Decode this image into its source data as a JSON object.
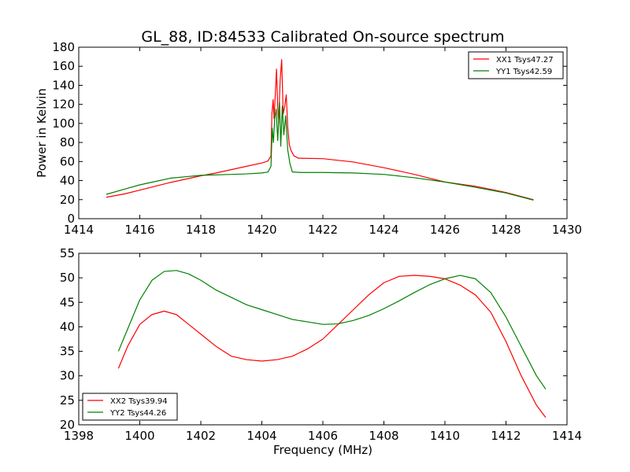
{
  "figure_title": "GL_88, ID:84533 Calibrated On-source spectrum",
  "colors": {
    "red": "#ff0000",
    "green": "#008000",
    "axes": "#000000",
    "background": "#ffffff"
  },
  "chart_data": [
    {
      "type": "line",
      "title": "GL_88, ID:84533 Calibrated On-source spectrum",
      "xlabel": "",
      "ylabel": "Power in Kelvin",
      "xlim": [
        1414,
        1430
      ],
      "ylim": [
        0,
        180
      ],
      "xticks": [
        "1414",
        "1416",
        "1418",
        "1420",
        "1422",
        "1424",
        "1426",
        "1428",
        "1430"
      ],
      "yticks": [
        "0",
        "20",
        "40",
        "60",
        "80",
        "100",
        "120",
        "140",
        "160",
        "180"
      ],
      "grid": false,
      "legend_position": "top-right",
      "series": [
        {
          "name": "XX1 Tsys47.27",
          "color": "#ff0000",
          "points": [
            [
              1414.9,
              22.5
            ],
            [
              1415.5,
              26
            ],
            [
              1416,
              30
            ],
            [
              1416.5,
              34
            ],
            [
              1417,
              38
            ],
            [
              1417.5,
              41.5
            ],
            [
              1418,
              45
            ],
            [
              1418.5,
              48
            ],
            [
              1419,
              51.5
            ],
            [
              1419.5,
              55
            ],
            [
              1420,
              58.5
            ],
            [
              1420.2,
              60.5
            ],
            [
              1420.3,
              66
            ],
            [
              1420.33,
              110
            ],
            [
              1420.37,
              125
            ],
            [
              1420.4,
              105
            ],
            [
              1420.44,
              130
            ],
            [
              1420.48,
              157
            ],
            [
              1420.52,
              118
            ],
            [
              1420.55,
              100
            ],
            [
              1420.6,
              145
            ],
            [
              1420.65,
              167
            ],
            [
              1420.7,
              110
            ],
            [
              1420.75,
              118
            ],
            [
              1420.8,
              130
            ],
            [
              1420.85,
              95
            ],
            [
              1420.9,
              78
            ],
            [
              1420.95,
              72
            ],
            [
              1421.05,
              66
            ],
            [
              1421.2,
              63.5
            ],
            [
              1422,
              63
            ],
            [
              1423,
              59.5
            ],
            [
              1424,
              53.5
            ],
            [
              1425,
              46.5
            ],
            [
              1425.5,
              42.5
            ],
            [
              1426,
              38.5
            ],
            [
              1427,
              34
            ],
            [
              1428,
              27.5
            ],
            [
              1428.9,
              20
            ]
          ]
        },
        {
          "name": "YY1 Tsys42.59",
          "color": "#008000",
          "points": [
            [
              1414.9,
              25.5
            ],
            [
              1415.5,
              31
            ],
            [
              1416,
              35.5
            ],
            [
              1416.5,
              39
            ],
            [
              1417,
              42.5
            ],
            [
              1417.5,
              44
            ],
            [
              1418,
              45.5
            ],
            [
              1419,
              46.5
            ],
            [
              1419.5,
              47
            ],
            [
              1420,
              48
            ],
            [
              1420.2,
              49
            ],
            [
              1420.3,
              55
            ],
            [
              1420.34,
              95
            ],
            [
              1420.38,
              80
            ],
            [
              1420.42,
              105
            ],
            [
              1420.47,
              115
            ],
            [
              1420.52,
              82
            ],
            [
              1420.58,
              122
            ],
            [
              1420.62,
              76
            ],
            [
              1420.67,
              118
            ],
            [
              1420.72,
              88
            ],
            [
              1420.78,
              108
            ],
            [
              1420.85,
              72
            ],
            [
              1420.92,
              58
            ],
            [
              1421,
              49
            ],
            [
              1421.3,
              48.5
            ],
            [
              1422,
              48.5
            ],
            [
              1423,
              48
            ],
            [
              1424,
              46.5
            ],
            [
              1425,
              43
            ],
            [
              1426,
              38.5
            ],
            [
              1427,
              33
            ],
            [
              1428,
              27
            ],
            [
              1428.9,
              19.5
            ]
          ]
        }
      ]
    },
    {
      "type": "line",
      "title": "",
      "xlabel": "Frequency (MHz)",
      "ylabel": "",
      "xlim": [
        1398,
        1414
      ],
      "ylim": [
        20,
        55
      ],
      "xticks": [
        "1398",
        "1400",
        "1402",
        "1404",
        "1406",
        "1408",
        "1410",
        "1412",
        "1414"
      ],
      "yticks": [
        "20",
        "25",
        "30",
        "35",
        "40",
        "45",
        "50",
        "55"
      ],
      "grid": false,
      "legend_position": "bottom-left",
      "series": [
        {
          "name": "XX2 Tsys39.94",
          "color": "#ff0000",
          "points": [
            [
              1399.3,
              31.5
            ],
            [
              1399.6,
              36
            ],
            [
              1400,
              40.5
            ],
            [
              1400.4,
              42.5
            ],
            [
              1400.8,
              43.2
            ],
            [
              1401.2,
              42.5
            ],
            [
              1401.6,
              40.5
            ],
            [
              1402,
              38.5
            ],
            [
              1402.5,
              36
            ],
            [
              1403,
              34
            ],
            [
              1403.5,
              33.3
            ],
            [
              1404,
              33
            ],
            [
              1404.5,
              33.3
            ],
            [
              1405,
              34
            ],
            [
              1405.5,
              35.5
            ],
            [
              1406,
              37.5
            ],
            [
              1406.5,
              40.5
            ],
            [
              1407,
              43.5
            ],
            [
              1407.5,
              46.5
            ],
            [
              1408,
              49
            ],
            [
              1408.5,
              50.3
            ],
            [
              1409,
              50.5
            ],
            [
              1409.5,
              50.3
            ],
            [
              1410,
              49.8
            ],
            [
              1410.5,
              48.5
            ],
            [
              1411,
              46.5
            ],
            [
              1411.5,
              43
            ],
            [
              1412,
              37
            ],
            [
              1412.5,
              30
            ],
            [
              1413,
              24
            ],
            [
              1413.3,
              21.5
            ]
          ]
        },
        {
          "name": "YY2 Tsys44.26",
          "color": "#008000",
          "points": [
            [
              1399.3,
              35
            ],
            [
              1399.6,
              39.5
            ],
            [
              1400,
              45.5
            ],
            [
              1400.4,
              49.5
            ],
            [
              1400.8,
              51.3
            ],
            [
              1401.2,
              51.5
            ],
            [
              1401.6,
              50.8
            ],
            [
              1402,
              49.5
            ],
            [
              1402.5,
              47.5
            ],
            [
              1403,
              46
            ],
            [
              1403.5,
              44.5
            ],
            [
              1404,
              43.5
            ],
            [
              1404.5,
              42.5
            ],
            [
              1405,
              41.5
            ],
            [
              1405.5,
              41
            ],
            [
              1406,
              40.5
            ],
            [
              1406.5,
              40.6
            ],
            [
              1407,
              41.3
            ],
            [
              1407.5,
              42.3
            ],
            [
              1408,
              43.7
            ],
            [
              1408.5,
              45.3
            ],
            [
              1409,
              47
            ],
            [
              1409.5,
              48.6
            ],
            [
              1410,
              49.8
            ],
            [
              1410.5,
              50.5
            ],
            [
              1411,
              49.8
            ],
            [
              1411.5,
              47
            ],
            [
              1412,
              42
            ],
            [
              1412.5,
              36
            ],
            [
              1413,
              30
            ],
            [
              1413.3,
              27.3
            ]
          ]
        }
      ]
    }
  ]
}
